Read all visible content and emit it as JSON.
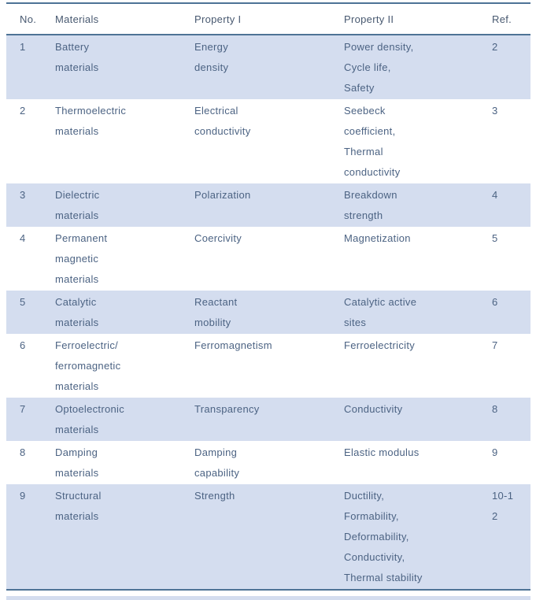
{
  "table": {
    "columns": [
      {
        "key": "no",
        "label": "No."
      },
      {
        "key": "materials",
        "label": "Materials"
      },
      {
        "key": "property1",
        "label": "Property I"
      },
      {
        "key": "property2",
        "label": "Property II"
      },
      {
        "key": "ref",
        "label": "Ref."
      }
    ],
    "rows": [
      {
        "no": [
          "1"
        ],
        "materials": [
          "Battery",
          "materials"
        ],
        "property1": [
          "Energy",
          "density"
        ],
        "property2": [
          "Power density,",
          "Cycle life,",
          "Safety"
        ],
        "ref": [
          "2"
        ]
      },
      {
        "no": [
          "2"
        ],
        "materials": [
          "Thermoelectric",
          "materials"
        ],
        "property1": [
          "Electrical",
          "conductivity"
        ],
        "property2": [
          "Seebeck",
          "coefficient,",
          "Thermal",
          "conductivity"
        ],
        "ref": [
          "3"
        ]
      },
      {
        "no": [
          "3"
        ],
        "materials": [
          "Dielectric",
          "materials"
        ],
        "property1": [
          "Polarization"
        ],
        "property2": [
          "Breakdown",
          "strength"
        ],
        "ref": [
          "4"
        ]
      },
      {
        "no": [
          "4"
        ],
        "materials": [
          "Permanent",
          "magnetic",
          "materials"
        ],
        "property1": [
          "Coercivity"
        ],
        "property2": [
          "Magnetization"
        ],
        "ref": [
          "5"
        ]
      },
      {
        "no": [
          "5"
        ],
        "materials": [
          "Catalytic",
          "materials"
        ],
        "property1": [
          "Reactant",
          "mobility"
        ],
        "property2": [
          "Catalytic active",
          "sites"
        ],
        "ref": [
          "6"
        ]
      },
      {
        "no": [
          "6"
        ],
        "materials": [
          "Ferroelectric/",
          "ferromagnetic",
          "materials"
        ],
        "property1": [
          "Ferromagnetism"
        ],
        "property2": [
          "Ferroelectricity"
        ],
        "ref": [
          "7"
        ]
      },
      {
        "no": [
          "7"
        ],
        "materials": [
          "Optoelectronic",
          "materials"
        ],
        "property1": [
          "Transparency"
        ],
        "property2": [
          "Conductivity"
        ],
        "ref": [
          "8"
        ]
      },
      {
        "no": [
          "8"
        ],
        "materials": [
          "Damping",
          "materials"
        ],
        "property1": [
          "Damping",
          "capability"
        ],
        "property2": [
          "Elastic modulus"
        ],
        "ref": [
          "9"
        ]
      },
      {
        "no": [
          "9"
        ],
        "materials": [
          "Structural",
          "materials"
        ],
        "property1": [
          "Strength"
        ],
        "property2": [
          "Ductility,",
          "Formability,",
          "Deformability,",
          "Conductivity,",
          "Thermal stability"
        ],
        "ref": [
          "10-1",
          "2"
        ]
      }
    ]
  },
  "colors": {
    "row_alt_background": "#d4ddef",
    "border": "#4e7396",
    "body_text": "#4c6383",
    "header_text": "#485970"
  }
}
